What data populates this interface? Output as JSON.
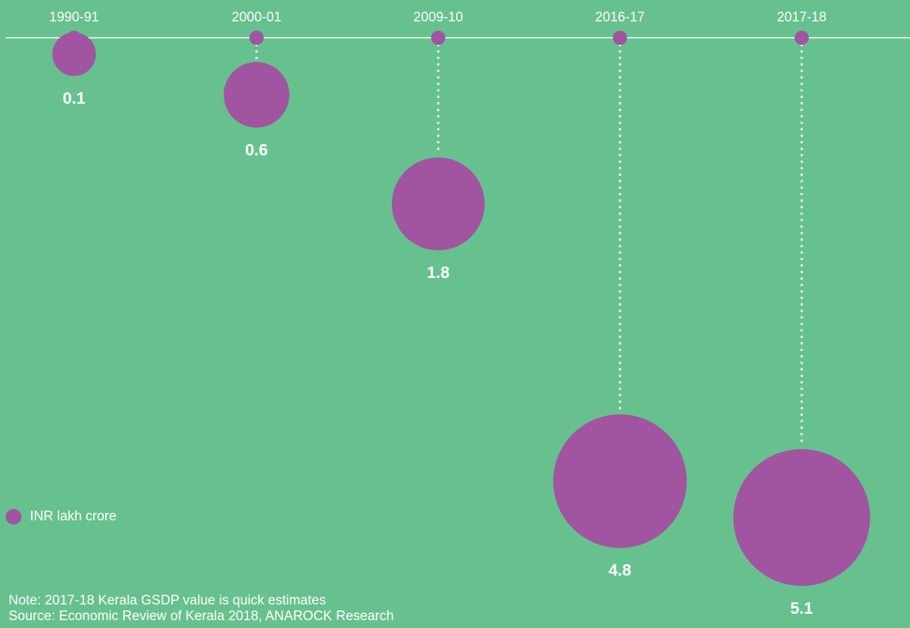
{
  "chart_data": {
    "type": "bubble-timeline",
    "unit_legend": "INR lakh crore",
    "categories": [
      "1990-91",
      "2000-01",
      "2009-10",
      "2016-17",
      "2017-18"
    ],
    "values": [
      0.1,
      0.6,
      1.8,
      4.8,
      5.1
    ],
    "value_labels": [
      "0.1",
      "0.6",
      "1.8",
      "4.8",
      "5.1"
    ]
  },
  "notes": {
    "note": "Note: 2017-18 Kerala GSDP value is quick estimates",
    "source": "Source: Economic Review of Kerala 2018, ANAROCK Research"
  },
  "colors": {
    "background": "#67c18e",
    "bubble": "#a155a1",
    "text": "#ffffff",
    "axis_line": "#ffffff"
  }
}
